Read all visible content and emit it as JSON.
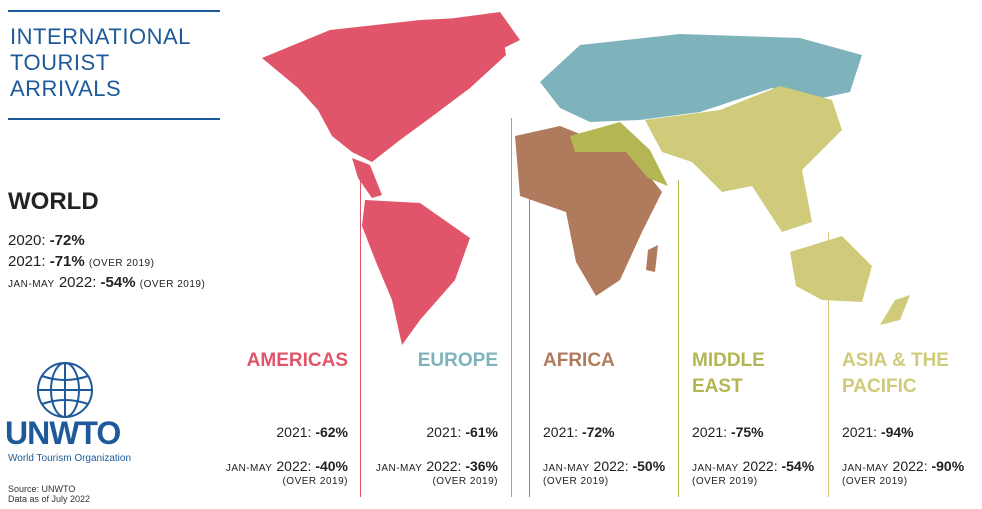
{
  "title": [
    "INTERNATIONAL",
    "TOURIST",
    "ARRIVALS"
  ],
  "world": {
    "heading": "WORLD",
    "rows": [
      {
        "label": "2020:",
        "value": "-72%"
      },
      {
        "label": "2021:",
        "value": "-71%",
        "note": "(OVER 2019)"
      },
      {
        "prefix": "JAN-MAY",
        "label": "2022:",
        "value": "-54%",
        "note": "(OVER 2019)"
      }
    ]
  },
  "regions": [
    {
      "name": [
        "AMERICAS"
      ],
      "color": "#e0556a",
      "label_2021": "2021:",
      "value_2021": "-62%",
      "prefix": "JAN-MAY",
      "label_2022": "2022:",
      "value_2022": "-40%",
      "note": "(OVER 2019)"
    },
    {
      "name": [
        "EUROPE"
      ],
      "color": "#7fb3bb",
      "label_2021": "2021:",
      "value_2021": "-61%",
      "prefix": "JAN-MAY",
      "label_2022": "2022:",
      "value_2022": "-36%",
      "note": "(OVER 2019)"
    },
    {
      "name": [
        "AFRICA"
      ],
      "color": "#b07a5c",
      "label_2021": "2021:",
      "value_2021": "-72%",
      "prefix": "JAN-MAY",
      "label_2022": "2022:",
      "value_2022": "-50%",
      "note": "(OVER 2019)"
    },
    {
      "name": [
        "MIDDLE",
        "EAST"
      ],
      "color": "#b4b654",
      "label_2021": "2021:",
      "value_2021": "-75%",
      "prefix": "JAN-MAY",
      "label_2022": "2022:",
      "value_2022": "-54%",
      "note": "(OVER 2019)"
    },
    {
      "name": [
        "ASIA & THE",
        "PACIFIC"
      ],
      "color": "#cfcb7a",
      "label_2021": "2021:",
      "value_2021": "-94%",
      "prefix": "JAN-MAY",
      "label_2022": "2022:",
      "value_2022": "-90%",
      "note": "(OVER 2019)"
    }
  ],
  "logo": {
    "name": "UNWTO",
    "subtitle": "World Tourism Organization"
  },
  "source": [
    "Source: UNWTO",
    "Data as of July 2022"
  ]
}
